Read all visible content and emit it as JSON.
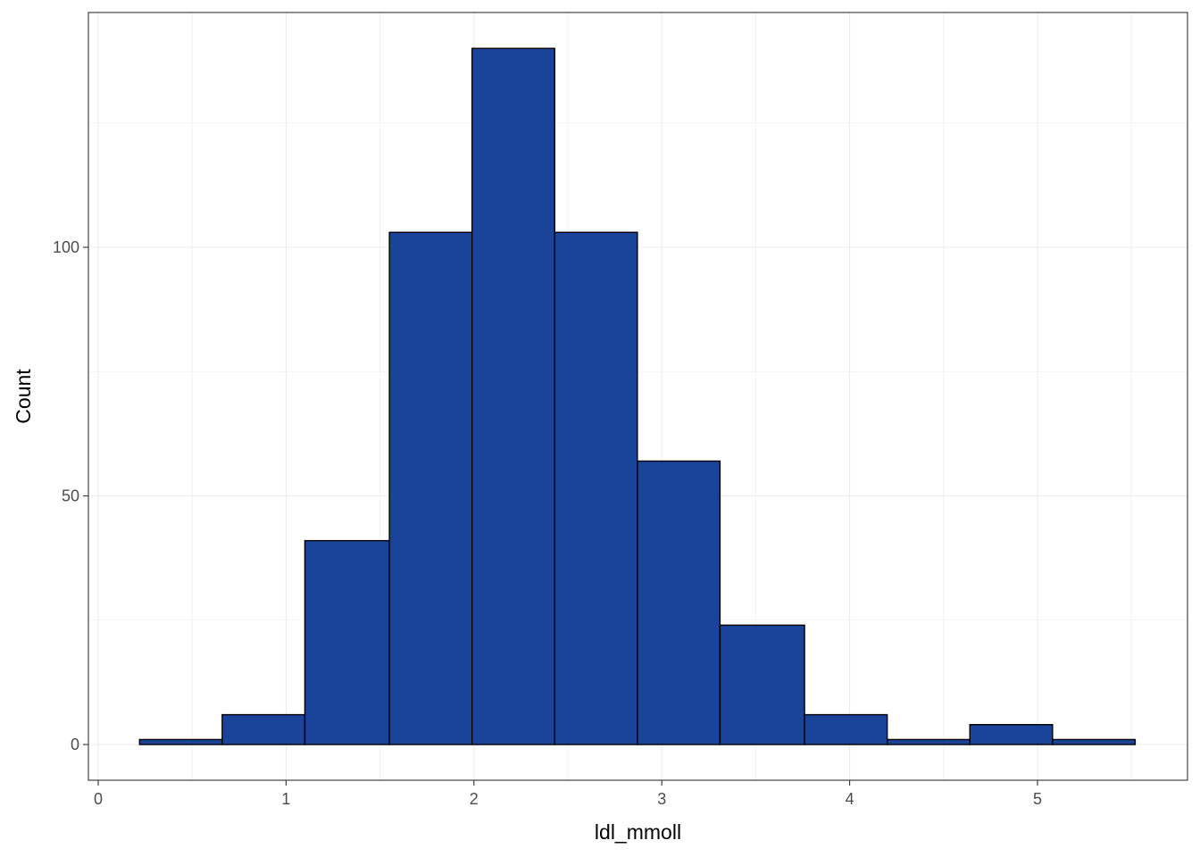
{
  "chart_data": {
    "type": "bar",
    "subtype": "histogram",
    "xlabel": "ldl_mmoll",
    "ylabel": "Count",
    "xlim": [
      0,
      5.6
    ],
    "ylim": [
      0,
      140
    ],
    "x_ticks": [
      0,
      1,
      2,
      3,
      4,
      5
    ],
    "y_ticks": [
      0,
      50,
      100
    ],
    "bins": [
      {
        "x0": 0.22,
        "x1": 0.66,
        "count": 1
      },
      {
        "x0": 0.66,
        "x1": 1.1,
        "count": 6
      },
      {
        "x0": 1.1,
        "x1": 1.55,
        "count": 41
      },
      {
        "x0": 1.55,
        "x1": 1.99,
        "count": 103
      },
      {
        "x0": 1.99,
        "x1": 2.43,
        "count": 140
      },
      {
        "x0": 2.43,
        "x1": 2.87,
        "count": 103
      },
      {
        "x0": 2.87,
        "x1": 3.31,
        "count": 57
      },
      {
        "x0": 3.31,
        "x1": 3.76,
        "count": 24
      },
      {
        "x0": 3.76,
        "x1": 4.2,
        "count": 6
      },
      {
        "x0": 4.2,
        "x1": 4.64,
        "count": 1
      },
      {
        "x0": 4.64,
        "x1": 5.08,
        "count": 4
      },
      {
        "x0": 5.08,
        "x1": 5.52,
        "count": 1
      }
    ],
    "bar_fill": "#19449a",
    "bar_stroke": "#000000",
    "grid": true,
    "grid_color": "#ebebeb",
    "panel_border_color": "#333333",
    "legend": "none"
  }
}
